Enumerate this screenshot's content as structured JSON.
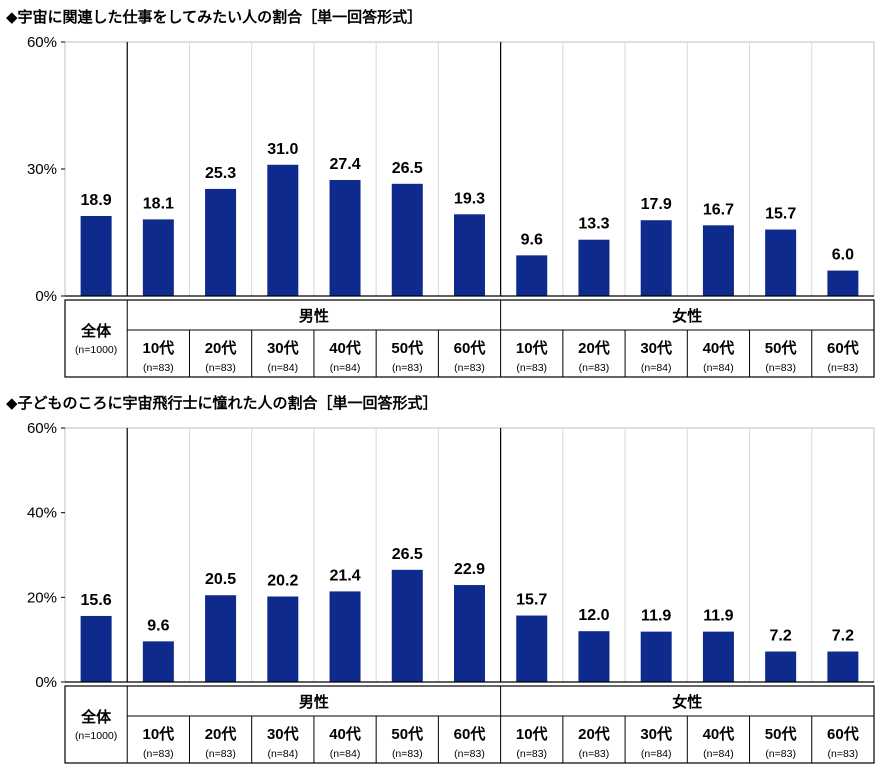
{
  "colors": {
    "bar": "#0d2a8c",
    "grid": "#d9d9d9",
    "axis": "#000000"
  },
  "charts": [
    {
      "title": "◆宇宙に関連した仕事をしてみたい人の割合［単一回答形式］",
      "chart_data": {
        "type": "bar",
        "categories": [
          "全体",
          "10代",
          "20代",
          "30代",
          "40代",
          "50代",
          "60代",
          "10代",
          "20代",
          "30代",
          "40代",
          "50代",
          "60代"
        ],
        "sample_sizes": [
          "(n=1000)",
          "(n=83)",
          "(n=83)",
          "(n=84)",
          "(n=84)",
          "(n=83)",
          "(n=83)",
          "(n=83)",
          "(n=83)",
          "(n=84)",
          "(n=84)",
          "(n=83)",
          "(n=83)"
        ],
        "groups": [
          {
            "label": "男性",
            "start": 1,
            "end": 6
          },
          {
            "label": "女性",
            "start": 7,
            "end": 12
          }
        ],
        "values": [
          18.9,
          18.1,
          25.3,
          31.0,
          27.4,
          26.5,
          19.3,
          9.6,
          13.3,
          17.9,
          16.7,
          15.7,
          6.0
        ],
        "value_labels": [
          "18.9",
          "18.1",
          "25.3",
          "31.0",
          "27.4",
          "26.5",
          "19.3",
          "9.6",
          "13.3",
          "17.9",
          "16.7",
          "15.7",
          "6.0"
        ],
        "yticks": [
          0,
          30,
          60
        ],
        "ytick_labels": [
          "0%",
          "30%",
          "60%"
        ],
        "ylim": [
          0,
          60
        ],
        "grid": true
      }
    },
    {
      "title": "◆子どものころに宇宙飛行士に憧れた人の割合［単一回答形式］",
      "chart_data": {
        "type": "bar",
        "categories": [
          "全体",
          "10代",
          "20代",
          "30代",
          "40代",
          "50代",
          "60代",
          "10代",
          "20代",
          "30代",
          "40代",
          "50代",
          "60代"
        ],
        "sample_sizes": [
          "(n=1000)",
          "(n=83)",
          "(n=83)",
          "(n=84)",
          "(n=84)",
          "(n=83)",
          "(n=83)",
          "(n=83)",
          "(n=83)",
          "(n=84)",
          "(n=84)",
          "(n=83)",
          "(n=83)"
        ],
        "groups": [
          {
            "label": "男性",
            "start": 1,
            "end": 6
          },
          {
            "label": "女性",
            "start": 7,
            "end": 12
          }
        ],
        "values": [
          15.6,
          9.6,
          20.5,
          20.2,
          21.4,
          26.5,
          22.9,
          15.7,
          12.0,
          11.9,
          11.9,
          7.2,
          7.2
        ],
        "value_labels": [
          "15.6",
          "9.6",
          "20.5",
          "20.2",
          "21.4",
          "26.5",
          "22.9",
          "15.7",
          "12.0",
          "11.9",
          "11.9",
          "7.2",
          "7.2"
        ],
        "yticks": [
          0,
          20,
          40,
          60
        ],
        "ytick_labels": [
          "0%",
          "20%",
          "40%",
          "60%"
        ],
        "ylim": [
          0,
          60
        ],
        "grid": true
      }
    }
  ]
}
